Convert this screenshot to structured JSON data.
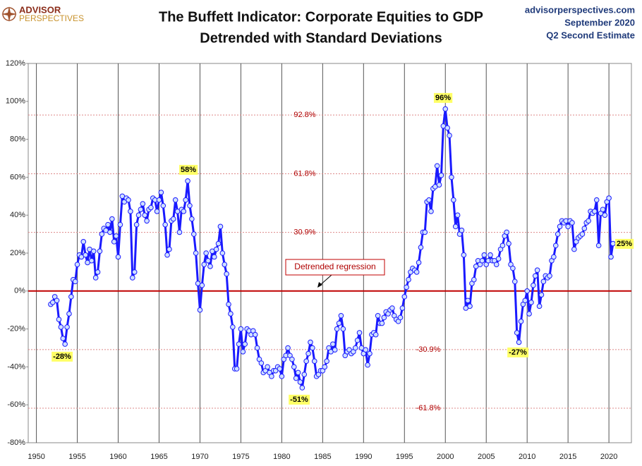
{
  "chart_data": {
    "type": "line",
    "logo": [
      "ADVISOR",
      "PERSPECTIVES"
    ],
    "title": "The Buffett Indicator: Corporate Equities to GDP",
    "subtitle": "Detrended with Standard Deviations",
    "source_lines": [
      "advisorperspectives.com",
      "September 2020",
      "Q2 Second Estimate"
    ],
    "color": "#1a1aff",
    "marker_fill": "#cfe0ff",
    "xlim": [
      1949,
      2022.75
    ],
    "ylim": [
      -80,
      120
    ],
    "xticks": [
      1950,
      1955,
      1960,
      1965,
      1970,
      1975,
      1980,
      1985,
      1990,
      1995,
      2000,
      2005,
      2010,
      2015,
      2020
    ],
    "yticks": [
      {
        "value": -80,
        "label": "-80%"
      },
      {
        "value": -60,
        "label": "-60%"
      },
      {
        "value": -40,
        "label": "-40%"
      },
      {
        "value": -20,
        "label": "-20%"
      },
      {
        "value": 0,
        "label": "0%"
      },
      {
        "value": 20,
        "label": "20%"
      },
      {
        "value": 40,
        "label": "40%"
      },
      {
        "value": 60,
        "label": "60%"
      },
      {
        "value": 80,
        "label": "80%"
      },
      {
        "value": 100,
        "label": "100%"
      },
      {
        "value": 120,
        "label": "120%"
      }
    ],
    "grid": true,
    "regression": {
      "value": 0,
      "label": "Detrended regression",
      "color": "#c00000"
    },
    "std_lines": [
      {
        "value": 92.8,
        "label": "92.8%"
      },
      {
        "value": 61.8,
        "label": "61.8%"
      },
      {
        "value": 30.9,
        "label": "30.9%"
      },
      {
        "value": -30.9,
        "label": "-30.9%"
      },
      {
        "value": -61.8,
        "label": "-61.8%"
      }
    ],
    "annotations": [
      "-28%",
      "58%",
      "-51%",
      "96%",
      "-27%",
      "25%"
    ],
    "x": [
      1951.75,
      1952,
      1952.25,
      1952.5,
      1952.75,
      1953,
      1953.25,
      1953.5,
      1953.75,
      1954,
      1954.25,
      1954.5,
      1954.75,
      1955,
      1955.25,
      1955.5,
      1955.75,
      1956,
      1956.25,
      1956.5,
      1956.75,
      1957,
      1957.25,
      1957.5,
      1957.75,
      1958,
      1958.25,
      1958.5,
      1958.75,
      1959,
      1959.25,
      1959.5,
      1959.75,
      1960,
      1960.25,
      1960.5,
      1960.75,
      1961,
      1961.25,
      1961.5,
      1961.75,
      1962,
      1962.25,
      1962.5,
      1962.75,
      1963,
      1963.25,
      1963.5,
      1963.75,
      1964,
      1964.25,
      1964.5,
      1964.75,
      1965,
      1965.25,
      1965.5,
      1965.75,
      1966,
      1966.25,
      1966.5,
      1966.75,
      1967,
      1967.25,
      1967.5,
      1967.75,
      1968,
      1968.25,
      1968.5,
      1968.75,
      1969,
      1969.25,
      1969.5,
      1969.75,
      1970,
      1970.25,
      1970.5,
      1970.75,
      1971,
      1971.25,
      1971.5,
      1971.75,
      1972,
      1972.25,
      1972.5,
      1972.75,
      1973,
      1973.25,
      1973.5,
      1973.75,
      1974,
      1974.25,
      1974.5,
      1974.75,
      1975,
      1975.25,
      1975.5,
      1975.75,
      1976,
      1976.25,
      1976.5,
      1976.75,
      1977,
      1977.25,
      1977.5,
      1977.75,
      1978,
      1978.25,
      1978.5,
      1978.75,
      1979,
      1979.25,
      1979.5,
      1979.75,
      1980,
      1980.25,
      1980.5,
      1980.75,
      1981,
      1981.25,
      1981.5,
      1981.75,
      1982,
      1982.25,
      1982.5,
      1982.75,
      1983,
      1983.25,
      1983.5,
      1983.75,
      1984,
      1984.25,
      1984.5,
      1984.75,
      1985,
      1985.25,
      1985.5,
      1985.75,
      1986,
      1986.25,
      1986.5,
      1986.75,
      1987,
      1987.25,
      1987.5,
      1987.75,
      1988,
      1988.25,
      1988.5,
      1988.75,
      1989,
      1989.25,
      1989.5,
      1989.75,
      1990,
      1990.25,
      1990.5,
      1990.75,
      1991,
      1991.25,
      1991.5,
      1991.75,
      1992,
      1992.25,
      1992.5,
      1992.75,
      1993,
      1993.25,
      1993.5,
      1993.75,
      1994,
      1994.25,
      1994.5,
      1994.75,
      1995,
      1995.25,
      1995.5,
      1995.75,
      1996,
      1996.25,
      1996.5,
      1996.75,
      1997,
      1997.25,
      1997.5,
      1997.75,
      1998,
      1998.25,
      1998.5,
      1998.75,
      1999,
      1999.25,
      1999.5,
      1999.75,
      2000,
      2000.25,
      2000.5,
      2000.75,
      2001,
      2001.25,
      2001.5,
      2001.75,
      2002,
      2002.25,
      2002.5,
      2002.75,
      2003,
      2003.25,
      2003.5,
      2003.75,
      2004,
      2004.25,
      2004.5,
      2004.75,
      2005,
      2005.25,
      2005.5,
      2005.75,
      2006,
      2006.25,
      2006.5,
      2006.75,
      2007,
      2007.25,
      2007.5,
      2007.75,
      2008,
      2008.25,
      2008.5,
      2008.75,
      2009,
      2009.25,
      2009.5,
      2009.75,
      2010,
      2010.25,
      2010.5,
      2010.75,
      2011,
      2011.25,
      2011.5,
      2011.75,
      2012,
      2012.25,
      2012.5,
      2012.75,
      2013,
      2013.25,
      2013.5,
      2013.75,
      2014,
      2014.25,
      2014.5,
      2014.75,
      2015,
      2015.25,
      2015.5,
      2015.75,
      2016,
      2016.25,
      2016.5,
      2016.75,
      2017,
      2017.25,
      2017.5,
      2017.75,
      2018,
      2018.25,
      2018.5,
      2018.75,
      2019,
      2019.25,
      2019.5,
      2019.75,
      2020,
      2020.25,
      2020.5
    ],
    "values": [
      -7,
      -6,
      -3,
      -5,
      -15,
      -19,
      -25,
      -28,
      -19,
      -12,
      -3,
      6,
      5,
      14,
      19,
      18,
      26,
      19,
      15,
      22,
      16,
      21,
      7,
      10,
      21,
      30,
      33,
      32,
      35,
      31,
      38,
      26,
      29,
      18,
      35,
      50,
      47,
      49,
      48,
      42,
      7,
      10,
      35,
      40,
      43,
      46,
      40,
      37,
      43,
      44,
      49,
      48,
      42,
      48,
      52,
      45,
      35,
      19,
      22,
      37,
      38,
      48,
      42,
      31,
      43,
      42,
      48,
      58,
      45,
      38,
      30,
      20,
      4,
      -10,
      3,
      14,
      20,
      16,
      13,
      21,
      18,
      22,
      25,
      34,
      20,
      14,
      9,
      -7,
      -12,
      -19,
      -41,
      -41,
      -28,
      -20,
      -32,
      -28,
      -20,
      -21,
      -23,
      -21,
      -23,
      -30,
      -36,
      -38,
      -43,
      -42,
      -40,
      -43,
      -45,
      -42,
      -42,
      -40,
      -41,
      -45,
      -36,
      -34,
      -30,
      -34,
      -36,
      -40,
      -46,
      -43,
      -48,
      -51,
      -44,
      -37,
      -33,
      -27,
      -30,
      -37,
      -45,
      -44,
      -42,
      -42,
      -40,
      -37,
      -30,
      -32,
      -28,
      -31,
      -20,
      -17,
      -13,
      -20,
      -34,
      -32,
      -31,
      -33,
      -32,
      -30,
      -26,
      -22,
      -30,
      -33,
      -31,
      -39,
      -33,
      -23,
      -22,
      -23,
      -13,
      -17,
      -17,
      -14,
      -11,
      -12,
      -10,
      -9,
      -13,
      -15,
      -16,
      -14,
      -9,
      -3,
      2,
      6,
      10,
      12,
      11,
      10,
      15,
      23,
      31,
      31,
      47,
      48,
      42,
      54,
      55,
      66,
      56,
      61,
      87,
      96,
      86,
      82,
      60,
      48,
      34,
      40,
      30,
      32,
      19,
      -9,
      -5,
      -8,
      4,
      6,
      13,
      16,
      14,
      16,
      19,
      14,
      16,
      19,
      16,
      16,
      14,
      17,
      22,
      24,
      29,
      31,
      25,
      14,
      12,
      5,
      -22,
      -27,
      -16,
      -7,
      -5,
      0,
      -12,
      -6,
      3,
      8,
      11,
      -8,
      -2,
      5,
      8,
      7,
      8,
      16,
      18,
      24,
      30,
      34,
      37,
      36,
      37,
      34,
      37,
      36,
      22,
      26,
      28,
      29,
      30,
      33,
      36,
      37,
      42,
      41,
      42,
      48,
      24,
      41,
      43,
      40,
      47,
      49,
      18,
      25
    ]
  }
}
